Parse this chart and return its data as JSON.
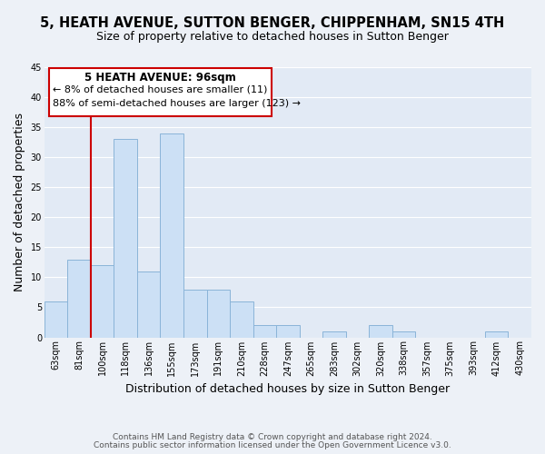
{
  "title": "5, HEATH AVENUE, SUTTON BENGER, CHIPPENHAM, SN15 4TH",
  "subtitle": "Size of property relative to detached houses in Sutton Benger",
  "xlabel": "Distribution of detached houses by size in Sutton Benger",
  "ylabel": "Number of detached properties",
  "bar_color": "#cce0f5",
  "bar_edge_color": "#8ab4d8",
  "bg_color": "#edf1f7",
  "plot_bg_color": "#e2eaf5",
  "grid_color": "#ffffff",
  "categories": [
    "63sqm",
    "81sqm",
    "100sqm",
    "118sqm",
    "136sqm",
    "155sqm",
    "173sqm",
    "191sqm",
    "210sqm",
    "228sqm",
    "247sqm",
    "265sqm",
    "283sqm",
    "302sqm",
    "320sqm",
    "338sqm",
    "357sqm",
    "375sqm",
    "393sqm",
    "412sqm",
    "430sqm"
  ],
  "values": [
    6,
    13,
    12,
    33,
    11,
    34,
    8,
    8,
    6,
    2,
    2,
    0,
    1,
    0,
    2,
    1,
    0,
    0,
    0,
    1,
    0
  ],
  "ylim": [
    0,
    45
  ],
  "yticks": [
    0,
    5,
    10,
    15,
    20,
    25,
    30,
    35,
    40,
    45
  ],
  "property_line_color": "#cc0000",
  "property_line_label": "5 HEATH AVENUE: 96sqm",
  "annotation_line1": "← 8% of detached houses are smaller (11)",
  "annotation_line2": "88% of semi-detached houses are larger (123) →",
  "box_color": "#ffffff",
  "box_edge_color": "#cc0000",
  "footer1": "Contains HM Land Registry data © Crown copyright and database right 2024.",
  "footer2": "Contains public sector information licensed under the Open Government Licence v3.0.",
  "title_fontsize": 10.5,
  "subtitle_fontsize": 9,
  "axis_label_fontsize": 9,
  "tick_fontsize": 7,
  "annotation_fontsize": 8,
  "footer_fontsize": 6.5
}
